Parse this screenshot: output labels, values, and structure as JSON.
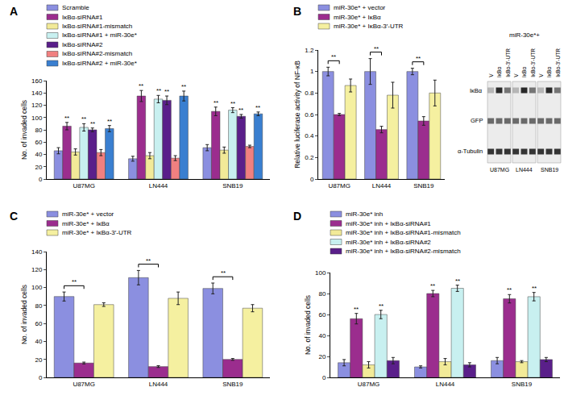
{
  "chart_data": [
    {
      "panel": "A",
      "type": "bar",
      "y_label": "No. of invaded cells",
      "categories": [
        "U87MG",
        "LN444",
        "SNB19"
      ],
      "ylim": [
        0,
        160
      ],
      "yticks": [
        0,
        20,
        40,
        60,
        80,
        100,
        120,
        140,
        160
      ],
      "grid": false,
      "series": [
        {
          "name": "Scramble",
          "color": "#8b8fe0",
          "values": [
            46,
            33,
            51
          ],
          "errors": [
            5,
            4,
            5
          ]
        },
        {
          "name": "IκBα-siRNA#1",
          "color": "#9b2d8e",
          "values": [
            86,
            135,
            110
          ],
          "errors": [
            6,
            9,
            7
          ],
          "annotations": [
            "**",
            "**",
            "**"
          ]
        },
        {
          "name": "IκBα-siRNA#1-mismatch",
          "color": "#f2ea98",
          "values": [
            44,
            38,
            47
          ],
          "errors": [
            5,
            5,
            5
          ]
        },
        {
          "name": "IκBα-siRNA#1 + miR-30e*",
          "color": "#c8f0f0",
          "values": [
            84,
            130,
            112
          ],
          "errors": [
            6,
            6,
            4
          ],
          "annotations": [
            "**",
            "**",
            "**"
          ]
        },
        {
          "name": "IκBα-siRNA#2",
          "color": "#5a1f8a",
          "values": [
            80,
            128,
            102
          ],
          "errors": [
            3,
            7,
            3
          ],
          "annotations": [
            "**",
            "**",
            "**"
          ]
        },
        {
          "name": "IκBα-siRNA#2-mismatch",
          "color": "#f08080",
          "values": [
            43,
            34,
            53
          ],
          "errors": [
            5,
            4,
            2
          ]
        },
        {
          "name": "IκBα-siRNA#2 + miR-30e*",
          "color": "#3a7fd0",
          "values": [
            82,
            135,
            106
          ],
          "errors": [
            5,
            8,
            3
          ],
          "annotations": [
            "**",
            "**",
            "**"
          ]
        }
      ]
    },
    {
      "panel": "B",
      "type": "bar",
      "y_label": "Relative luciferase activity of NF-κB",
      "categories": [
        "U87MG",
        "LN444",
        "SNB19"
      ],
      "ylim": [
        0,
        1.2
      ],
      "yticks": [
        0,
        0.2,
        0.4,
        0.6,
        0.8,
        1,
        1.2
      ],
      "grid": false,
      "series": [
        {
          "name": "miR-30e* + vector",
          "color": "#8b8fe0",
          "values": [
            1.0,
            1.0,
            1.0
          ],
          "errors": [
            0.04,
            0.12,
            0.03
          ]
        },
        {
          "name": "miR-30e* + IκBα",
          "color": "#9b2d8e",
          "values": [
            0.6,
            0.46,
            0.54
          ],
          "errors": [
            0.01,
            0.03,
            0.04
          ]
        },
        {
          "name": "miR-30e* + IκBα-3′-UTR",
          "color": "#f5f0a0",
          "values": [
            0.87,
            0.78,
            0.8
          ],
          "errors": [
            0.06,
            0.12,
            0.12
          ]
        }
      ],
      "brackets": [
        {
          "category": "U87MG",
          "series": [
            0,
            1
          ],
          "text": "**"
        },
        {
          "category": "LN444",
          "series": [
            0,
            1
          ],
          "text": "**"
        },
        {
          "category": "SNB19",
          "series": [
            0,
            1
          ],
          "text": "**"
        }
      ]
    },
    {
      "panel": "C",
      "type": "bar",
      "y_label": "No. of invaded cells",
      "categories": [
        "U87MG",
        "LN444",
        "SNB19"
      ],
      "ylim": [
        0,
        140
      ],
      "yticks": [
        0,
        20,
        40,
        60,
        80,
        100,
        120,
        140
      ],
      "grid": false,
      "series": [
        {
          "name": "miR-30e* + vector",
          "color": "#8b8fe0",
          "values": [
            90,
            111,
            99
          ],
          "errors": [
            5,
            8,
            6
          ]
        },
        {
          "name": "miR-30e* + IκBα",
          "color": "#9b2d8e",
          "values": [
            16,
            12,
            20
          ],
          "errors": [
            1,
            1,
            1
          ]
        },
        {
          "name": "miR-30e* + IκBα-3′-UTR",
          "color": "#f5f0a0",
          "values": [
            81,
            88,
            77
          ],
          "errors": [
            2,
            7,
            4
          ]
        }
      ],
      "brackets": [
        {
          "category": "U87MG",
          "series": [
            0,
            1
          ],
          "text": "**"
        },
        {
          "category": "LN444",
          "series": [
            0,
            1
          ],
          "text": "**"
        },
        {
          "category": "SNB19",
          "series": [
            0,
            1
          ],
          "text": "**"
        }
      ]
    },
    {
      "panel": "D",
      "type": "bar",
      "y_label": "No. of invaded cells",
      "categories": [
        "U87MG",
        "LN444",
        "SNB19"
      ],
      "ylim": [
        0,
        100
      ],
      "yticks": [
        0,
        20,
        40,
        60,
        80,
        100
      ],
      "grid": false,
      "series": [
        {
          "name": "miR-30e* inh",
          "color": "#8b8fe0",
          "values": [
            14,
            10,
            16
          ],
          "errors": [
            3,
            1,
            3
          ]
        },
        {
          "name": "miR-30e* inh + IκBα-siRNA#1",
          "color": "#9b2d8e",
          "values": [
            56,
            80,
            75
          ],
          "errors": [
            5,
            3,
            4
          ],
          "annotations": [
            "**",
            "**",
            "**"
          ]
        },
        {
          "name": "miR-30e* inh + IκBα-siRNA#1-mismatch",
          "color": "#f2ea98",
          "values": [
            12,
            15,
            15
          ],
          "errors": [
            3,
            3,
            1
          ]
        },
        {
          "name": "miR-30e* inh + IκBα-siRNA#2",
          "color": "#c8f0f0",
          "values": [
            60,
            85,
            77
          ],
          "errors": [
            4,
            3,
            4
          ],
          "annotations": [
            "**",
            "**",
            "**"
          ]
        },
        {
          "name": "miR-30e* inh + IκBα-siRNA#2-mismatch",
          "color": "#5a1f8a",
          "values": [
            16,
            12,
            17
          ],
          "errors": [
            3,
            2,
            2
          ]
        }
      ]
    }
  ],
  "blot": {
    "header": "miR-30e*+",
    "lanes": [
      "V",
      "IκBα",
      "IκBα-3′-UTR"
    ],
    "rows": [
      "IκBα",
      "GFP",
      "α-Tubulin"
    ],
    "cell_lines": [
      "U87MG",
      "LN444",
      "SNB19"
    ]
  }
}
